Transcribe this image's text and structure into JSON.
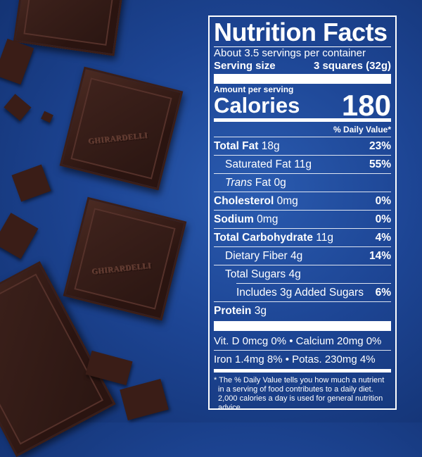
{
  "label": {
    "title": "Nutrition Facts",
    "servings": "About 3.5 servings per container",
    "serving_size_label": "Serving size",
    "serving_size_value": "3 squares (32g)",
    "amount_per_serving": "Amount per serving",
    "calories_label": "Calories",
    "calories_value": "180",
    "dv_header": "% Daily Value*",
    "rows": [
      {
        "name": "Total Fat",
        "amount": "18g",
        "dv": "23%"
      },
      {
        "name": "Saturated Fat",
        "amount": "11g",
        "dv": "55%"
      },
      {
        "name": "Trans",
        "name2": " Fat",
        "amount": "0g",
        "dv": ""
      },
      {
        "name": "Cholesterol",
        "amount": "0mg",
        "dv": "0%"
      },
      {
        "name": "Sodium",
        "amount": "0mg",
        "dv": "0%"
      },
      {
        "name": "Total Carbohydrate",
        "amount": "11g",
        "dv": "4%"
      },
      {
        "name": "Dietary Fiber",
        "amount": "4g",
        "dv": "14%"
      },
      {
        "name": "Total Sugars",
        "amount": "4g",
        "dv": ""
      },
      {
        "name": "Includes 3g Added Sugars",
        "amount": "",
        "dv": "6%"
      },
      {
        "name": "Protein",
        "amount": "3g",
        "dv": ""
      }
    ],
    "vitamins": [
      "Vit. D 0mcg 0% • Calcium 20mg 0%",
      "Iron 1.4mg 8% • Potas. 230mg 4%"
    ],
    "footnote": "* The % Daily Value tells you how much a nutrient in a serving of food contributes to a daily diet. 2,000 calories a day is used for general nutrition advice."
  },
  "brand_embossed": "GHIRARDELLI"
}
